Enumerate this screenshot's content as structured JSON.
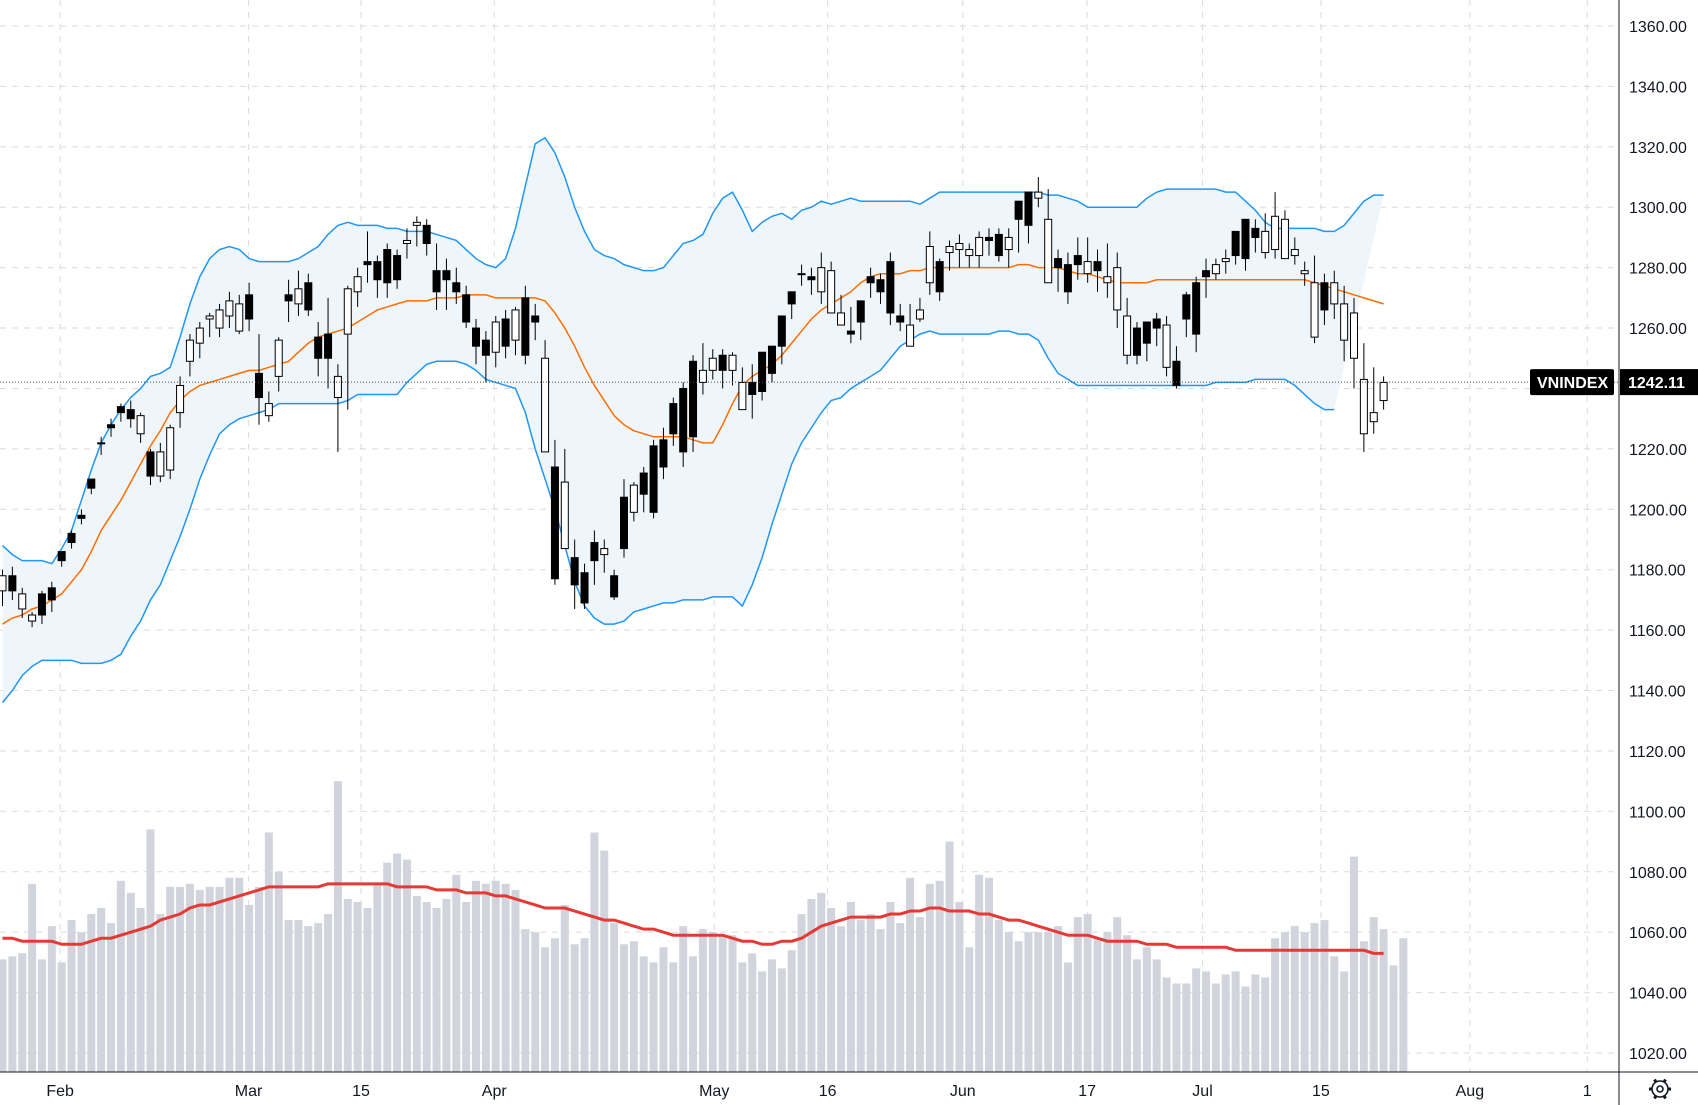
{
  "chart_data": {
    "type": "candlestick",
    "title": "",
    "symbol": "VNINDEX",
    "last_price": "1242.11",
    "y_axis": {
      "min": 1020,
      "max": 1360,
      "step": 20,
      "tick_labels": [
        "1360.00",
        "1340.00",
        "1320.00",
        "1300.00",
        "1280.00",
        "1260.00",
        "1240.00",
        "1220.00",
        "1200.00",
        "1180.00",
        "1160.00",
        "1140.00",
        "1120.00",
        "1100.00",
        "1080.00",
        "1060.00",
        "1040.00",
        "1020.00"
      ]
    },
    "x_axis": {
      "tick_labels": [
        {
          "label": "Feb",
          "bar": 2.5
        },
        {
          "label": "Mar",
          "bar": 21.6
        },
        {
          "label": "15",
          "bar": 33.0
        },
        {
          "label": "Apr",
          "bar": 46.5
        },
        {
          "label": "May",
          "bar": 68.8
        },
        {
          "label": "16",
          "bar": 80.3
        },
        {
          "label": "Jun",
          "bar": 94.0
        },
        {
          "label": "17",
          "bar": 106.6
        },
        {
          "label": "Jul",
          "bar": 118.3
        },
        {
          "label": "15",
          "bar": 130.3
        },
        {
          "label": "Aug",
          "bar": 145.4
        },
        {
          "label": "1",
          "bar": 157.3
        }
      ]
    },
    "candles": {
      "open": [
        1173,
        1178,
        1167,
        1163,
        1172,
        1174,
        1186,
        1192,
        1198,
        1210,
        1222,
        1228,
        1234,
        1233,
        1225,
        1219,
        1211,
        1213,
        1232,
        1249,
        1255,
        1263,
        1260,
        1264,
        1259,
        1271,
        1245,
        1231,
        1244,
        1271,
        1268,
        1275,
        1257,
        1258,
        1237,
        1258,
        1272,
        1282,
        1282,
        1286,
        1284,
        1288,
        1294,
        1294,
        1279,
        1279,
        1275,
        1271,
        1260,
        1256,
        1252,
        1263,
        1256,
        1270,
        1264,
        1219,
        1214,
        1187,
        1184,
        1179,
        1189,
        1185,
        1178,
        1204,
        1199,
        1212,
        1221,
        1223,
        1235,
        1240,
        1249,
        1242,
        1246,
        1251,
        1246,
        1233,
        1242,
        1252,
        1254,
        1264,
        1272,
        1278,
        1277,
        1272,
        1265,
        1261,
        1259,
        1269,
        1277,
        1276,
        1282,
        1264,
        1254,
        1263,
        1275,
        1282,
        1285,
        1286,
        1284,
        1284,
        1290,
        1291,
        1286,
        1302,
        1305,
        1303,
        1275,
        1283,
        1281,
        1284,
        1278,
        1282,
        1275,
        1266,
        1251,
        1260,
        1262,
        1263,
        1247,
        1249,
        1271,
        1275,
        1279,
        1278,
        1282,
        1292,
        1296,
        1293,
        1285,
        1286,
        1283,
        1284,
        1278,
        1257,
        1275,
        1268,
        1256,
        1250,
        1225,
        1229,
        1236
      ],
      "close": [
        1178,
        1173,
        1172,
        1165,
        1165,
        1170,
        1183,
        1189,
        1197,
        1207,
        1222,
        1227,
        1232,
        1230,
        1231,
        1211,
        1219,
        1227,
        1241,
        1256,
        1260,
        1264,
        1266,
        1269,
        1268,
        1263,
        1237,
        1235,
        1256,
        1269,
        1273,
        1266,
        1250,
        1250,
        1244,
        1273,
        1277,
        1281,
        1276,
        1275,
        1276,
        1289,
        1295,
        1288,
        1272,
        1276,
        1272,
        1262,
        1254,
        1251,
        1262,
        1254,
        1266,
        1251,
        1262,
        1250,
        1177,
        1209,
        1175,
        1169,
        1183,
        1187,
        1171,
        1187,
        1208,
        1205,
        1199,
        1214,
        1225,
        1219,
        1224,
        1246,
        1250,
        1246,
        1251,
        1242,
        1238,
        1239,
        1245,
        1254,
        1268,
        1278,
        1276,
        1280,
        1279,
        1265,
        1258,
        1262,
        1275,
        1272,
        1265,
        1262,
        1261,
        1266,
        1287,
        1272,
        1287,
        1288,
        1286,
        1290,
        1289,
        1284,
        1290,
        1296,
        1294,
        1305,
        1296,
        1280,
        1272,
        1281,
        1282,
        1279,
        1277,
        1280,
        1264,
        1251,
        1255,
        1260,
        1261,
        1241,
        1263,
        1258,
        1277,
        1281,
        1283,
        1284,
        1283,
        1290,
        1292,
        1297,
        1296,
        1286,
        1279,
        1275,
        1266,
        1275,
        1268,
        1265,
        1243,
        1232,
        1242
      ],
      "high": [
        1180,
        1181,
        1174,
        1166,
        1173,
        1176,
        1186,
        1193,
        1200,
        1210,
        1224,
        1230,
        1235,
        1236,
        1232,
        1220,
        1222,
        1228,
        1244,
        1258,
        1262,
        1265,
        1268,
        1272,
        1271,
        1275,
        1258,
        1239,
        1257,
        1276,
        1279,
        1278,
        1262,
        1270,
        1248,
        1274,
        1280,
        1292,
        1284,
        1288,
        1286,
        1293,
        1297,
        1296,
        1288,
        1283,
        1280,
        1274,
        1263,
        1259,
        1264,
        1266,
        1267,
        1274,
        1268,
        1256,
        1223,
        1220,
        1190,
        1182,
        1193,
        1190,
        1180,
        1210,
        1209,
        1214,
        1223,
        1227,
        1237,
        1242,
        1251,
        1255,
        1253,
        1253,
        1252,
        1247,
        1248,
        1246,
        1253,
        1260,
        1270,
        1281,
        1280,
        1285,
        1282,
        1271,
        1267,
        1264,
        1280,
        1278,
        1285,
        1268,
        1268,
        1270,
        1292,
        1283,
        1289,
        1291,
        1288,
        1292,
        1293,
        1293,
        1293,
        1298,
        1301,
        1310,
        1306,
        1286,
        1285,
        1290,
        1290,
        1286,
        1288,
        1285,
        1270,
        1262,
        1260,
        1265,
        1264,
        1254,
        1272,
        1277,
        1283,
        1283,
        1286,
        1287,
        1294,
        1296,
        1298,
        1305,
        1299,
        1290,
        1282,
        1284,
        1278,
        1279,
        1274,
        1270,
        1255,
        1247,
        1244
      ],
      "low": [
        1168,
        1170,
        1164,
        1161,
        1162,
        1166,
        1181,
        1187,
        1195,
        1205,
        1218,
        1224,
        1229,
        1227,
        1222,
        1208,
        1209,
        1210,
        1227,
        1244,
        1250,
        1257,
        1257,
        1260,
        1258,
        1259,
        1228,
        1229,
        1239,
        1262,
        1264,
        1264,
        1244,
        1240,
        1219,
        1233,
        1267,
        1275,
        1270,
        1270,
        1273,
        1283,
        1287,
        1284,
        1266,
        1266,
        1268,
        1260,
        1248,
        1242,
        1247,
        1250,
        1251,
        1248,
        1256,
        1243,
        1175,
        1203,
        1167,
        1167,
        1175,
        1179,
        1170,
        1184,
        1196,
        1199,
        1197,
        1210,
        1221,
        1214,
        1219,
        1238,
        1243,
        1240,
        1241,
        1233,
        1230,
        1236,
        1242,
        1248,
        1263,
        1274,
        1271,
        1268,
        1270,
        1262,
        1255,
        1256,
        1270,
        1268,
        1261,
        1259,
        1254,
        1262,
        1271,
        1269,
        1279,
        1280,
        1280,
        1280,
        1284,
        1282,
        1280,
        1285,
        1288,
        1300,
        1291,
        1272,
        1268,
        1276,
        1275,
        1272,
        1270,
        1260,
        1248,
        1248,
        1249,
        1254,
        1244,
        1240,
        1257,
        1252,
        1270,
        1276,
        1278,
        1281,
        1279,
        1285,
        1283,
        1283,
        1284,
        1281,
        1274,
        1255,
        1261,
        1263,
        1249,
        1240,
        1219,
        1225,
        1233
      ]
    },
    "overlays": {
      "bollinger_upper": [
        1188,
        1185,
        1183,
        1183,
        1183,
        1182,
        1187,
        1193,
        1203,
        1213,
        1222,
        1228,
        1233,
        1237,
        1240,
        1244,
        1245,
        1247,
        1257,
        1268,
        1277,
        1283,
        1286,
        1287,
        1286,
        1283,
        1282,
        1282,
        1282,
        1282,
        1283,
        1285,
        1287,
        1291,
        1294,
        1295,
        1294,
        1294,
        1294,
        1293,
        1293,
        1292,
        1292,
        1292,
        1291,
        1290,
        1289,
        1286,
        1283,
        1281,
        1280,
        1283,
        1293,
        1307,
        1321,
        1323,
        1318,
        1310,
        1300,
        1292,
        1286,
        1284,
        1283,
        1281,
        1280,
        1279,
        1279,
        1280,
        1284,
        1288,
        1289,
        1291,
        1298,
        1303,
        1305,
        1299,
        1292,
        1295,
        1297,
        1298,
        1296,
        1299,
        1300,
        1302,
        1301,
        1302,
        1303,
        1302,
        1302,
        1302,
        1302,
        1302,
        1302,
        1301,
        1303,
        1305,
        1305,
        1305,
        1305,
        1305,
        1305,
        1305,
        1305,
        1305,
        1305,
        1305,
        1304,
        1304,
        1303,
        1302,
        1300,
        1300,
        1300,
        1300,
        1300,
        1300,
        1303,
        1305,
        1306,
        1306,
        1306,
        1306,
        1306,
        1306,
        1305,
        1305,
        1302,
        1299,
        1295,
        1293,
        1293,
        1293,
        1293,
        1293,
        1292,
        1292,
        1294,
        1298,
        1302,
        1304,
        1304
      ],
      "bollinger_middle": [
        1162,
        1164,
        1165,
        1167,
        1168,
        1170,
        1172,
        1176,
        1180,
        1186,
        1193,
        1198,
        1203,
        1209,
        1215,
        1221,
        1226,
        1232,
        1236,
        1239,
        1241,
        1242,
        1243,
        1244,
        1245,
        1246,
        1246,
        1247,
        1248,
        1249,
        1252,
        1255,
        1257,
        1258,
        1259,
        1260,
        1262,
        1264,
        1266,
        1267,
        1268,
        1269,
        1269,
        1269,
        1270,
        1270,
        1270,
        1271,
        1271,
        1271,
        1270,
        1270,
        1270,
        1270,
        1270,
        1269,
        1265,
        1260,
        1254,
        1247,
        1241,
        1236,
        1231,
        1228,
        1226,
        1225,
        1224,
        1224,
        1224,
        1224,
        1223,
        1222,
        1222,
        1228,
        1235,
        1241,
        1244,
        1246,
        1248,
        1251,
        1255,
        1259,
        1263,
        1266,
        1268,
        1270,
        1272,
        1275,
        1277,
        1278,
        1278,
        1278,
        1279,
        1279,
        1280,
        1280,
        1280,
        1280,
        1280,
        1280,
        1280,
        1280,
        1280,
        1281,
        1281,
        1280,
        1280,
        1280,
        1279,
        1278,
        1278,
        1277,
        1276,
        1275,
        1275,
        1275,
        1275,
        1276,
        1276,
        1276,
        1276,
        1276,
        1276,
        1276,
        1276,
        1276,
        1276,
        1276,
        1276,
        1276,
        1276,
        1276,
        1276,
        1275,
        1274,
        1273,
        1272,
        1271,
        1270,
        1269,
        1268
      ],
      "bollinger_lower": [
        1136,
        1140,
        1145,
        1148,
        1150,
        1150,
        1150,
        1150,
        1149,
        1149,
        1149,
        1150,
        1152,
        1158,
        1163,
        1170,
        1175,
        1183,
        1191,
        1200,
        1210,
        1218,
        1225,
        1228,
        1230,
        1231,
        1232,
        1233,
        1235,
        1235,
        1235,
        1235,
        1235,
        1235,
        1235,
        1236,
        1238,
        1238,
        1238,
        1238,
        1238,
        1242,
        1245,
        1248,
        1249,
        1249,
        1249,
        1248,
        1246,
        1243,
        1242,
        1241,
        1240,
        1232,
        1220,
        1210,
        1200,
        1188,
        1176,
        1168,
        1164,
        1162,
        1162,
        1163,
        1166,
        1167,
        1168,
        1169,
        1169,
        1170,
        1170,
        1170,
        1171,
        1171,
        1171,
        1168,
        1175,
        1184,
        1195,
        1205,
        1215,
        1222,
        1227,
        1232,
        1236,
        1237,
        1240,
        1242,
        1244,
        1246,
        1250,
        1254,
        1256,
        1258,
        1259,
        1258,
        1258,
        1258,
        1258,
        1258,
        1258,
        1259,
        1259,
        1258,
        1258,
        1256,
        1250,
        1245,
        1243,
        1241,
        1241,
        1241,
        1241,
        1241,
        1241,
        1241,
        1241,
        1241,
        1241,
        1241,
        1241,
        1241,
        1241,
        1242,
        1242,
        1242,
        1242,
        1243,
        1243,
        1243,
        1243,
        1241,
        1238,
        1235,
        1233,
        1233
      ]
    },
    "volume": {
      "values": [
        1051,
        1052,
        1053,
        1076,
        1051,
        1062,
        1050,
        1064,
        1060,
        1066,
        1068,
        1063,
        1077,
        1073,
        1068,
        1094,
        1066,
        1075,
        1075,
        1076,
        1074,
        1075,
        1075,
        1078,
        1078,
        1069,
        1075,
        1093,
        1080,
        1064,
        1064,
        1062,
        1063,
        1066,
        1110,
        1071,
        1070,
        1068,
        1076,
        1083,
        1086,
        1084,
        1072,
        1070,
        1068,
        1071,
        1079,
        1070,
        1077,
        1076,
        1077,
        1076,
        1074,
        1061,
        1060,
        1055,
        1058,
        1069,
        1056,
        1058,
        1093,
        1087,
        1063,
        1056,
        1057,
        1052,
        1050,
        1055,
        1050,
        1062,
        1052,
        1061,
        1060,
        1059,
        1059,
        1050,
        1053,
        1047,
        1051,
        1048,
        1054,
        1066,
        1071,
        1073,
        1068,
        1062,
        1070,
        1064,
        1066,
        1061,
        1070,
        1063,
        1078,
        1065,
        1076,
        1077,
        1090,
        1070,
        1055,
        1079,
        1078,
        1064,
        1060,
        1057,
        1060,
        1060,
        1060,
        1062,
        1050,
        1065,
        1066,
        1058,
        1060,
        1065,
        1059,
        1051,
        1055,
        1051,
        1045,
        1043,
        1043,
        1048,
        1047,
        1043,
        1046,
        1047,
        1042,
        1046,
        1045,
        1058,
        1060,
        1062,
        1060,
        1063,
        1064,
        1052,
        1047,
        1085,
        1057,
        1065,
        1061,
        1049,
        1058
      ]
    },
    "volume_ma": [
      1058,
      1058,
      1057,
      1057,
      1057,
      1057,
      1056,
      1056,
      1056,
      1057,
      1058,
      1058,
      1059,
      1060,
      1061,
      1062,
      1064,
      1065,
      1066,
      1068,
      1069,
      1069,
      1070,
      1071,
      1072,
      1073,
      1074,
      1075,
      1075,
      1075,
      1075,
      1075,
      1075,
      1076,
      1076,
      1076,
      1076,
      1076,
      1076,
      1076,
      1075,
      1075,
      1075,
      1075,
      1074,
      1074,
      1074,
      1073,
      1073,
      1073,
      1072,
      1072,
      1071,
      1070,
      1069,
      1068,
      1068,
      1068,
      1067,
      1066,
      1065,
      1064,
      1064,
      1063,
      1062,
      1061,
      1061,
      1060,
      1059,
      1059,
      1059,
      1059,
      1059,
      1059,
      1058,
      1057,
      1057,
      1056,
      1056,
      1057,
      1057,
      1058,
      1060,
      1062,
      1063,
      1064,
      1065,
      1065,
      1065,
      1065,
      1066,
      1066,
      1067,
      1067,
      1068,
      1068,
      1067,
      1067,
      1067,
      1066,
      1066,
      1065,
      1064,
      1064,
      1063,
      1062,
      1061,
      1060,
      1059,
      1059,
      1059,
      1058,
      1057,
      1057,
      1057,
      1057,
      1056,
      1056,
      1056,
      1055,
      1055,
      1055,
      1055,
      1055,
      1055,
      1054,
      1054,
      1054,
      1054,
      1054,
      1054,
      1054,
      1054,
      1054,
      1054,
      1054,
      1054,
      1054,
      1054,
      1053,
      1053
    ],
    "colors": {
      "candle_up_fill": "#ffffff",
      "candle_down_fill": "#000000",
      "candle_border": "#000000",
      "bollinger_band": "#2196f3",
      "bollinger_fill": "#eef6fc",
      "bollinger_middle": "#ff6d00",
      "volume_bar": "#d1d4dc",
      "volume_ma": "#e53935",
      "grid": "#d9dbe0",
      "label_bg": "#000000",
      "label_text": "#ffffff"
    },
    "grid": true,
    "settings_icon": "settings-gear-icon"
  }
}
